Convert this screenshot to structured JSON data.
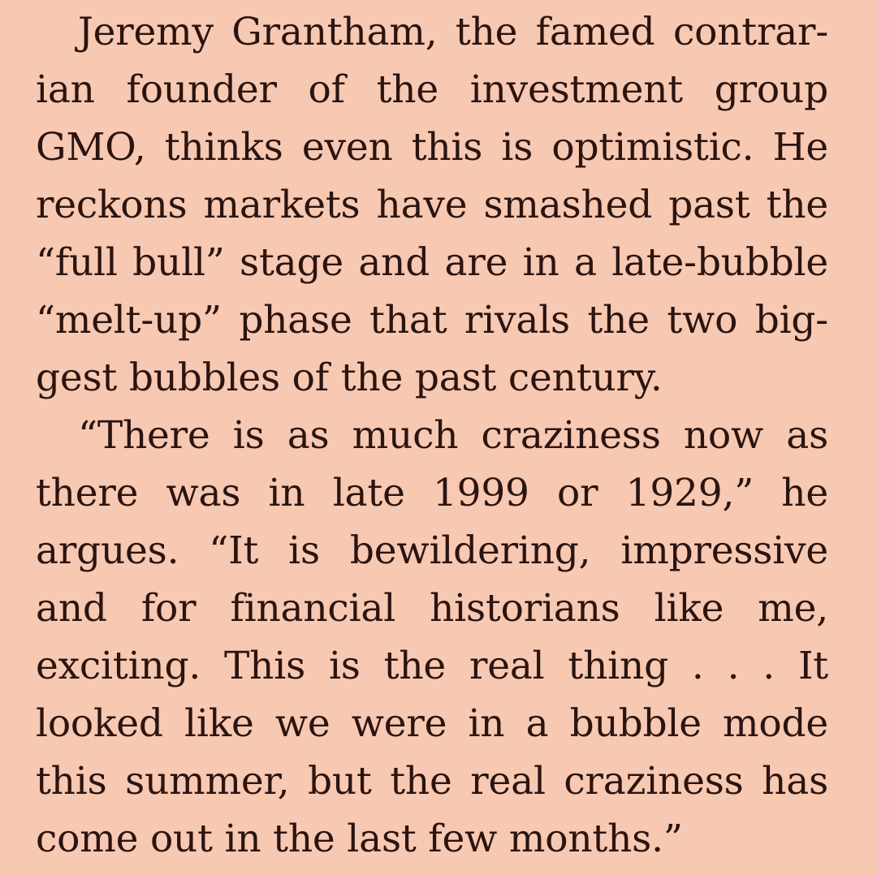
{
  "article": {
    "paragraphs": [
      {
        "lines": [
          "Jeremy Grantham, the famed contrar-",
          "ian founder of the investment group",
          "GMO, thinks even this is optimistic. He",
          "reckons markets have smashed past the",
          "“full bull” stage and are in a late-bubble",
          "“melt-up” phase that rivals the two big-",
          "gest bubbles of the past century."
        ]
      },
      {
        "lines": [
          "“There is as much craziness now as",
          "there was in late 1999 or 1929,” he",
          "argues. “It is bewildering, impressive",
          "and for financial historians like me,",
          "exciting. This is the real thing . . . It",
          "looked like we were in a bubble mode",
          "this summer, but the real craziness has",
          "come out in the last few months.”"
        ]
      }
    ]
  }
}
